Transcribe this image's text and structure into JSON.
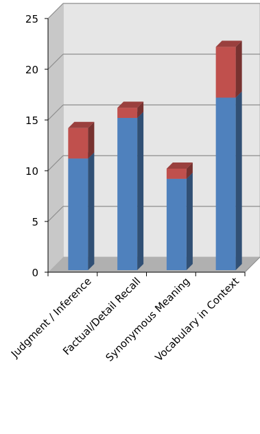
{
  "chart_data": {
    "type": "bar",
    "stacked": true,
    "three_d": true,
    "categories": [
      "Judgment / Inference",
      "Factual/Detail Recall",
      "Synonymous Meaning",
      "Vocabulary in Context"
    ],
    "series": [
      {
        "values": [
          11,
          15,
          9,
          17
        ],
        "color": "#4f81bd"
      },
      {
        "values": [
          3,
          1,
          1,
          5
        ],
        "color": "#c0504d"
      }
    ],
    "yticks": [
      0,
      5,
      10,
      15,
      20,
      25
    ],
    "ylim": [
      0,
      25
    ],
    "grid": true,
    "legend": "none"
  }
}
